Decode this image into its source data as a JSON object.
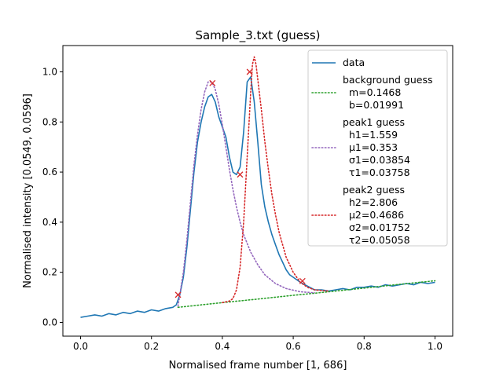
{
  "chart_data": {
    "type": "line",
    "title": "Sample_3.txt (guess)",
    "xlabel": "Normalised frame number [1, 686]",
    "ylabel": "Normalised intensity [0.0549, 0.0596]",
    "xlim": [
      -0.05,
      1.05
    ],
    "ylim": [
      -0.055,
      1.105
    ],
    "xticks": [
      "0.0",
      "0.2",
      "0.4",
      "0.6",
      "0.8",
      "1.0"
    ],
    "xtick_values": [
      0.0,
      0.2,
      0.4,
      0.6,
      0.8,
      1.0
    ],
    "yticks": [
      "0.0",
      "0.2",
      "0.4",
      "0.6",
      "0.8",
      "1.0"
    ],
    "ytick_values": [
      0.0,
      0.2,
      0.4,
      0.6,
      0.8,
      1.0
    ],
    "grid": false,
    "legend_position": "upper right",
    "colors": {
      "data": "#1f77b4",
      "background": "#2ca02c",
      "peak1": "#9467bd",
      "peak2": "#d62728",
      "markers": "#d62728"
    },
    "legend": [
      {
        "key": "data",
        "lines": [
          "data"
        ]
      },
      {
        "key": "background",
        "lines": [
          "background guess",
          "  m=0.1468",
          "  b=0.01991"
        ]
      },
      {
        "key": "peak1",
        "lines": [
          "peak1 guess",
          "  h1=1.559",
          "  μ1=0.353",
          "  σ1=0.03854",
          "  τ1=0.03758"
        ]
      },
      {
        "key": "peak2",
        "lines": [
          "peak2 guess",
          "  h2=2.806",
          "  μ2=0.4686",
          "  σ2=0.01752",
          "  τ2=0.05058"
        ]
      }
    ],
    "series": [
      {
        "name": "data",
        "style": "solid",
        "x": [
          0.0,
          0.02,
          0.04,
          0.06,
          0.08,
          0.1,
          0.12,
          0.14,
          0.16,
          0.18,
          0.2,
          0.22,
          0.24,
          0.26,
          0.27,
          0.28,
          0.29,
          0.3,
          0.31,
          0.32,
          0.33,
          0.34,
          0.35,
          0.36,
          0.37,
          0.38,
          0.39,
          0.4,
          0.41,
          0.42,
          0.43,
          0.44,
          0.45,
          0.46,
          0.47,
          0.48,
          0.49,
          0.5,
          0.51,
          0.52,
          0.53,
          0.54,
          0.55,
          0.56,
          0.57,
          0.58,
          0.59,
          0.6,
          0.62,
          0.64,
          0.66,
          0.68,
          0.7,
          0.72,
          0.74,
          0.76,
          0.78,
          0.8,
          0.82,
          0.84,
          0.86,
          0.88,
          0.9,
          0.92,
          0.94,
          0.96,
          0.98,
          1.0
        ],
        "y": [
          0.02,
          0.025,
          0.03,
          0.025,
          0.035,
          0.03,
          0.04,
          0.035,
          0.045,
          0.04,
          0.05,
          0.045,
          0.055,
          0.06,
          0.07,
          0.11,
          0.18,
          0.3,
          0.45,
          0.6,
          0.72,
          0.8,
          0.86,
          0.9,
          0.91,
          0.88,
          0.82,
          0.78,
          0.74,
          0.66,
          0.6,
          0.59,
          0.62,
          0.76,
          0.96,
          0.98,
          0.88,
          0.72,
          0.55,
          0.46,
          0.4,
          0.35,
          0.31,
          0.27,
          0.24,
          0.21,
          0.19,
          0.18,
          0.16,
          0.145,
          0.13,
          0.13,
          0.125,
          0.13,
          0.135,
          0.13,
          0.14,
          0.14,
          0.145,
          0.14,
          0.15,
          0.145,
          0.15,
          0.155,
          0.15,
          0.16,
          0.155,
          0.16
        ]
      },
      {
        "name": "background guess",
        "style": "dotted",
        "x": [
          0.275,
          0.4,
          0.5,
          0.6,
          0.65,
          0.7,
          0.8,
          0.9,
          1.0
        ],
        "y": [
          0.06,
          0.079,
          0.093,
          0.108,
          0.115,
          0.122,
          0.137,
          0.152,
          0.166
        ]
      },
      {
        "name": "peak1 guess",
        "style": "dotted",
        "x": [
          0.275,
          0.29,
          0.3,
          0.31,
          0.32,
          0.33,
          0.34,
          0.35,
          0.36,
          0.37,
          0.38,
          0.39,
          0.4,
          0.41,
          0.42,
          0.43,
          0.44,
          0.45,
          0.46,
          0.48,
          0.5,
          0.52,
          0.55,
          0.58,
          0.62,
          0.66
        ],
        "y": [
          0.065,
          0.2,
          0.33,
          0.48,
          0.63,
          0.75,
          0.85,
          0.92,
          0.96,
          0.96,
          0.93,
          0.87,
          0.79,
          0.7,
          0.61,
          0.53,
          0.46,
          0.4,
          0.35,
          0.28,
          0.23,
          0.19,
          0.155,
          0.135,
          0.122,
          0.118
        ]
      },
      {
        "name": "peak2 guess",
        "style": "dotted",
        "x": [
          0.4,
          0.42,
          0.43,
          0.44,
          0.45,
          0.46,
          0.47,
          0.48,
          0.485,
          0.49,
          0.495,
          0.5,
          0.51,
          0.52,
          0.53,
          0.54,
          0.55,
          0.56,
          0.57,
          0.58,
          0.59,
          0.6,
          0.62,
          0.64,
          0.66,
          0.7
        ],
        "y": [
          0.079,
          0.085,
          0.095,
          0.13,
          0.22,
          0.4,
          0.66,
          0.92,
          1.03,
          1.06,
          1.03,
          0.97,
          0.85,
          0.72,
          0.61,
          0.51,
          0.43,
          0.36,
          0.31,
          0.26,
          0.23,
          0.2,
          0.16,
          0.14,
          0.13,
          0.125
        ]
      }
    ],
    "markers": {
      "symbol": "x",
      "x": [
        0.275,
        0.372,
        0.45,
        0.477,
        0.626
      ],
      "y": [
        0.11,
        0.955,
        0.59,
        1.0,
        0.165
      ]
    }
  }
}
